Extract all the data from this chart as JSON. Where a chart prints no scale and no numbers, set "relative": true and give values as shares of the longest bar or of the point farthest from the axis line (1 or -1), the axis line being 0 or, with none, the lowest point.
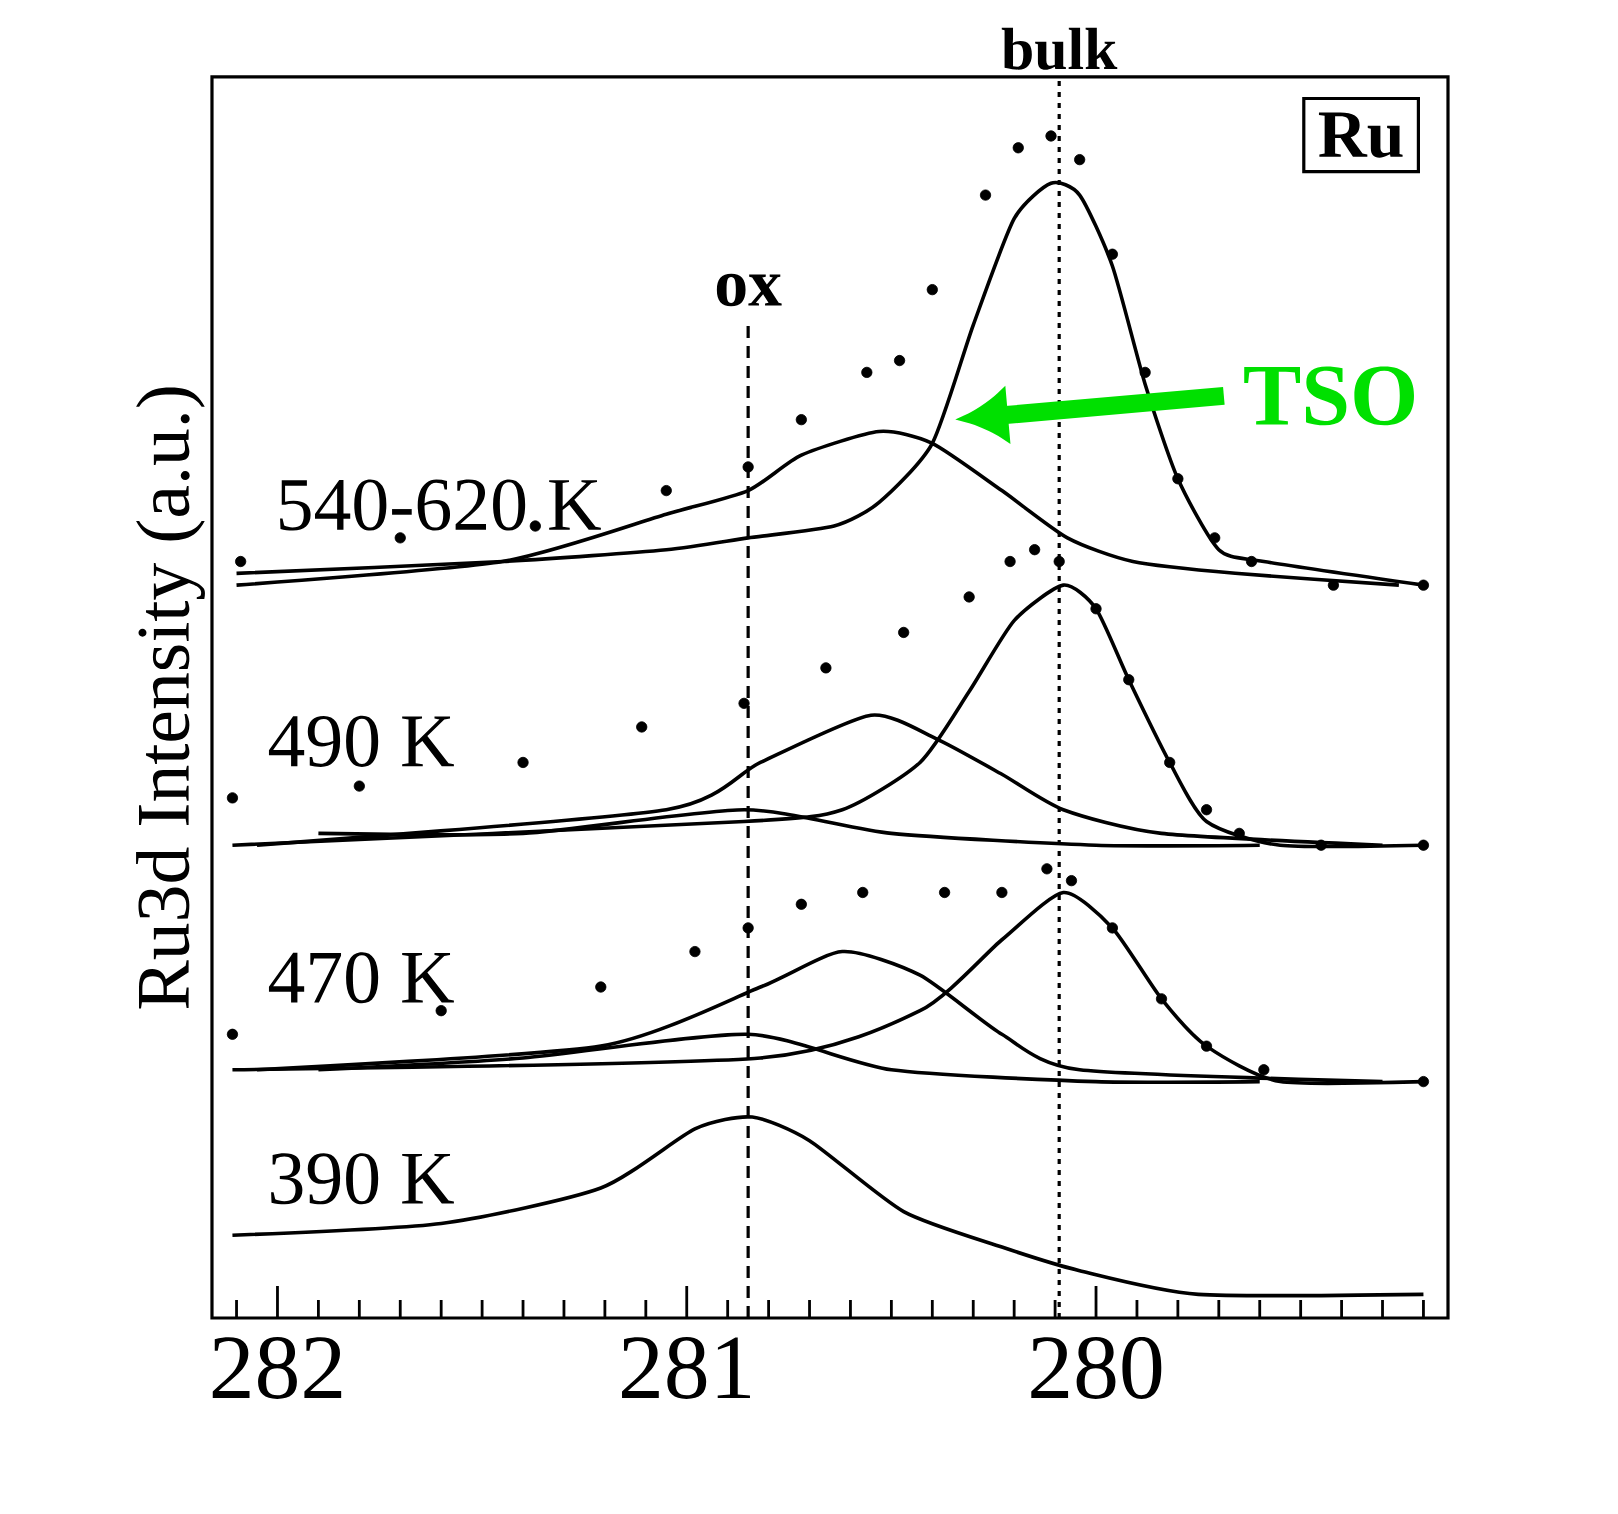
{
  "chart_data": {
    "type": "line",
    "relative": true,
    "ylabel": "Ru3d  Intensity (a.u.)",
    "xlim": [
      282.16,
      279.14
    ],
    "xticks": [
      282,
      281,
      280,
      {
        "value": 282.1,
        "label": null
      },
      {
        "value": 281.9,
        "label": null
      },
      {
        "value": 281.8,
        "label": null
      },
      {
        "value": 281.7,
        "label": null
      },
      {
        "value": 281.6,
        "label": null
      },
      {
        "value": 281.5,
        "label": null
      },
      {
        "value": 281.4,
        "label": null
      },
      {
        "value": 281.3,
        "label": null
      },
      {
        "value": 281.2,
        "label": null
      },
      {
        "value": 281.1,
        "label": null
      },
      {
        "value": 280.9,
        "label": null
      },
      {
        "value": 280.8,
        "label": null
      },
      {
        "value": 280.7,
        "label": null
      },
      {
        "value": 280.6,
        "label": null
      },
      {
        "value": 280.5,
        "label": null
      },
      {
        "value": 280.4,
        "label": null
      },
      {
        "value": 280.3,
        "label": null
      },
      {
        "value": 280.2,
        "label": null
      },
      {
        "value": 280.1,
        "label": null
      },
      {
        "value": 279.9,
        "label": null
      },
      {
        "value": 279.8,
        "label": null
      },
      {
        "value": 279.7,
        "label": null
      },
      {
        "value": 279.6,
        "label": null
      },
      {
        "value": 279.5,
        "label": null
      },
      {
        "value": 279.4,
        "label": null
      },
      {
        "value": 279.3,
        "label": null
      },
      {
        "value": 279.2,
        "label": null
      }
    ],
    "ref_lines": [
      {
        "axis": "x",
        "value": 280.85,
        "label": "ox",
        "line_style": "dashed"
      },
      {
        "axis": "x",
        "value": 280.09,
        "label": "bulk",
        "line_style": "dotted"
      }
    ],
    "annotations": [
      "Ru",
      "TSO"
    ],
    "series": [
      {
        "name": "540-620 K",
        "type": "scatter",
        "marker": "circle",
        "color": "#000000",
        "x": [
          282.09,
          281.7,
          281.37,
          281.05,
          280.85,
          280.72,
          280.56,
          280.48,
          280.4,
          280.27,
          280.19,
          280.11,
          280.04,
          279.96,
          279.88,
          279.8,
          279.71,
          279.62,
          279.42,
          279.2
        ],
        "values": [
          0.64,
          0.66,
          0.67,
          0.7,
          0.72,
          0.76,
          0.8,
          0.81,
          0.87,
          0.95,
          0.99,
          1.0,
          0.98,
          0.9,
          0.8,
          0.71,
          0.66,
          0.64,
          0.62,
          0.62
        ]
      },
      {
        "color": "#000000",
        "x": [
          282.1,
          281.45,
          281.05,
          280.85,
          280.64,
          280.53,
          280.4,
          280.3,
          280.2,
          280.11,
          280.04,
          279.96,
          279.88,
          279.8,
          279.7,
          279.59,
          279.2
        ],
        "values": [
          0.63,
          0.64,
          0.65,
          0.66,
          0.67,
          0.69,
          0.74,
          0.84,
          0.93,
          0.96,
          0.95,
          0.89,
          0.79,
          0.71,
          0.65,
          0.64,
          0.62
        ]
      },
      {
        "color": "#000000",
        "x": [
          282.1,
          281.45,
          281.05,
          280.85,
          280.72,
          280.53,
          280.4,
          280.23,
          280.07,
          279.91,
          279.66,
          279.26
        ],
        "values": [
          0.62,
          0.64,
          0.68,
          0.7,
          0.73,
          0.75,
          0.74,
          0.7,
          0.66,
          0.64,
          0.63,
          0.62
        ]
      },
      {
        "name": "490 K",
        "type": "scatter",
        "marker": "circle",
        "color": "#000000",
        "x": [
          282.11,
          281.8,
          281.4,
          281.11,
          280.86,
          280.66,
          280.47,
          280.31,
          280.21,
          280.15,
          280.09,
          280.0,
          279.92,
          279.82,
          279.73,
          279.65,
          279.45,
          279.2
        ],
        "values": [
          0.44,
          0.45,
          0.47,
          0.5,
          0.52,
          0.55,
          0.58,
          0.61,
          0.64,
          0.65,
          0.64,
          0.6,
          0.54,
          0.47,
          0.43,
          0.41,
          0.4,
          0.4
        ]
      },
      {
        "color": "#000000",
        "x": [
          282.11,
          280.86,
          280.62,
          280.43,
          280.31,
          280.2,
          280.08,
          280.0,
          279.92,
          279.82,
          279.73,
          279.55,
          279.2
        ],
        "values": [
          0.4,
          0.42,
          0.43,
          0.47,
          0.53,
          0.59,
          0.62,
          0.6,
          0.54,
          0.47,
          0.42,
          0.4,
          0.4
        ]
      },
      {
        "color": "#000000",
        "x": [
          282.05,
          281.05,
          280.82,
          280.55,
          280.39,
          280.23,
          280.08,
          279.84,
          279.3
        ],
        "values": [
          0.4,
          0.43,
          0.47,
          0.51,
          0.49,
          0.46,
          0.43,
          0.41,
          0.4
        ]
      },
      {
        "color": "#000000",
        "x": [
          281.9,
          281.4,
          280.86,
          280.5,
          280.0,
          279.6
        ],
        "values": [
          0.41,
          0.41,
          0.43,
          0.41,
          0.4,
          0.4
        ]
      },
      {
        "name": "470 K",
        "type": "scatter",
        "marker": "circle",
        "color": "#000000",
        "x": [
          282.11,
          281.6,
          281.21,
          280.98,
          280.85,
          280.72,
          280.57,
          280.37,
          280.23,
          280.12,
          280.06,
          279.96,
          279.84,
          279.73,
          279.59,
          279.2
        ],
        "values": [
          0.24,
          0.26,
          0.28,
          0.31,
          0.33,
          0.35,
          0.36,
          0.36,
          0.36,
          0.38,
          0.37,
          0.33,
          0.27,
          0.23,
          0.21,
          0.2
        ]
      },
      {
        "color": "#000000",
        "x": [
          282.11,
          280.82,
          280.43,
          280.23,
          280.08,
          279.96,
          279.84,
          279.73,
          279.55,
          279.2
        ],
        "values": [
          0.21,
          0.22,
          0.26,
          0.32,
          0.36,
          0.33,
          0.27,
          0.23,
          0.2,
          0.2
        ]
      },
      {
        "color": "#000000",
        "x": [
          282.05,
          281.21,
          280.82,
          280.62,
          280.43,
          280.23,
          280.04,
          279.3
        ],
        "values": [
          0.21,
          0.23,
          0.28,
          0.31,
          0.29,
          0.24,
          0.21,
          0.2
        ]
      },
      {
        "color": "#000000",
        "x": [
          281.9,
          281.4,
          280.85,
          280.5,
          280.0,
          279.6
        ],
        "values": [
          0.21,
          0.22,
          0.24,
          0.21,
          0.2,
          0.2
        ]
      },
      {
        "name": "390 K",
        "color": "#000000",
        "x": [
          282.11,
          281.6,
          281.21,
          280.98,
          280.84,
          280.7,
          280.47,
          280.23,
          280.04,
          279.75,
          279.2
        ],
        "values": [
          0.07,
          0.08,
          0.11,
          0.16,
          0.17,
          0.15,
          0.09,
          0.06,
          0.04,
          0.02,
          0.02
        ]
      }
    ]
  }
}
